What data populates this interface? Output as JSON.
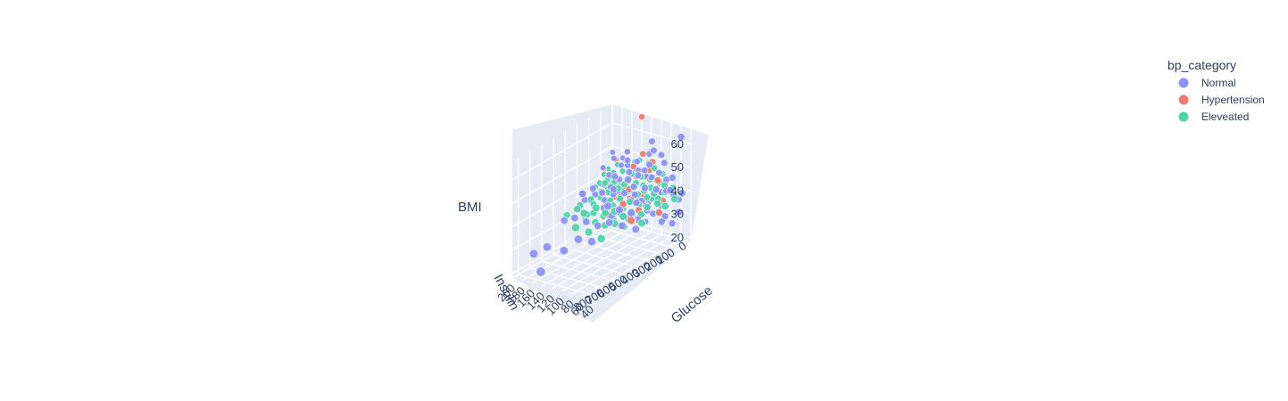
{
  "chart_data": {
    "type": "scatter",
    "title": "",
    "axes": {
      "x": {
        "label": "Glucose",
        "ticks": [
          "40",
          "60",
          "80",
          "100",
          "120",
          "140",
          "160",
          "180",
          "200"
        ],
        "range": [
          40,
          200
        ]
      },
      "y": {
        "label": "Insulin",
        "ticks": [
          "0",
          "100",
          "200",
          "300",
          "400",
          "500",
          "600",
          "700",
          "800"
        ],
        "range": [
          0,
          850
        ]
      },
      "z": {
        "label": "BMI",
        "ticks": [
          "20",
          "30",
          "40",
          "50",
          "60"
        ],
        "range": [
          18,
          68
        ]
      }
    },
    "legend": {
      "title": "bp_category",
      "placement": "top-right",
      "entries": [
        {
          "name": "Normal",
          "color": "#8c93f4"
        },
        {
          "name": "Hypertension",
          "color": "#ef7b6a"
        },
        {
          "name": "Eleveated",
          "color": "#4fd4a8"
        }
      ]
    },
    "series": [
      {
        "name": "Normal",
        "color": "#8c93f4",
        "points": [
          [
            95,
            0,
            25
          ],
          [
            105,
            50,
            28
          ],
          [
            120,
            30,
            31
          ],
          [
            110,
            80,
            30
          ],
          [
            130,
            60,
            33
          ],
          [
            140,
            100,
            34
          ],
          [
            88,
            20,
            27
          ],
          [
            100,
            0,
            36
          ],
          [
            115,
            150,
            35
          ],
          [
            125,
            120,
            37
          ],
          [
            135,
            80,
            36
          ],
          [
            150,
            200,
            38
          ],
          [
            160,
            180,
            40
          ],
          [
            170,
            120,
            39
          ],
          [
            92,
            40,
            32
          ],
          [
            105,
            110,
            33
          ],
          [
            118,
            90,
            34
          ],
          [
            128,
            140,
            35
          ],
          [
            145,
            160,
            36
          ],
          [
            155,
            130,
            37
          ],
          [
            165,
            210,
            35
          ],
          [
            175,
            250,
            38
          ],
          [
            100,
            200,
            30
          ],
          [
            110,
            240,
            31
          ],
          [
            120,
            270,
            34
          ],
          [
            130,
            300,
            33
          ],
          [
            140,
            320,
            36
          ],
          [
            85,
            60,
            26
          ],
          [
            78,
            0,
            24
          ],
          [
            90,
            0,
            42
          ],
          [
            100,
            20,
            45
          ],
          [
            110,
            40,
            43
          ],
          [
            120,
            60,
            46
          ],
          [
            130,
            0,
            41
          ],
          [
            140,
            30,
            44
          ],
          [
            150,
            80,
            47
          ],
          [
            160,
            0,
            42
          ],
          [
            170,
            50,
            45
          ],
          [
            180,
            70,
            48
          ],
          [
            190,
            0,
            43
          ],
          [
            195,
            100,
            44
          ],
          [
            185,
            130,
            38
          ],
          [
            175,
            90,
            36
          ],
          [
            65,
            0,
            35
          ],
          [
            70,
            20,
            37
          ],
          [
            80,
            40,
            39
          ],
          [
            92,
            80,
            40
          ],
          [
            105,
            120,
            41
          ],
          [
            118,
            160,
            42
          ],
          [
            132,
            180,
            39
          ],
          [
            145,
            220,
            41
          ],
          [
            158,
            260,
            40
          ],
          [
            170,
            290,
            42
          ],
          [
            182,
            310,
            37
          ],
          [
            97,
            230,
            27
          ],
          [
            113,
            280,
            29
          ],
          [
            127,
            330,
            31
          ],
          [
            141,
            370,
            30
          ],
          [
            155,
            410,
            32
          ],
          [
            169,
            450,
            34
          ],
          [
            183,
            480,
            33
          ],
          [
            62,
            10,
            30
          ],
          [
            75,
            10,
            44
          ],
          [
            88,
            25,
            50
          ],
          [
            100,
            0,
            52
          ],
          [
            110,
            60,
            49
          ],
          [
            125,
            0,
            51
          ],
          [
            140,
            40,
            48
          ],
          [
            180,
            180,
            36
          ],
          [
            190,
            230,
            34
          ],
          [
            196,
            280,
            38
          ],
          [
            122,
            500,
            28
          ],
          [
            135,
            560,
            30
          ],
          [
            150,
            620,
            26
          ],
          [
            165,
            700,
            29
          ],
          [
            178,
            760,
            27
          ],
          [
            142,
            850,
            24
          ],
          [
            160,
            420,
            44
          ],
          [
            118,
            380,
            40
          ],
          [
            104,
            340,
            38
          ],
          [
            92,
            290,
            36
          ],
          [
            130,
            10,
            22
          ],
          [
            145,
            30,
            23
          ],
          [
            70,
            50,
            40
          ],
          [
            58,
            0,
            38
          ],
          [
            190,
            30,
            40
          ],
          [
            120,
            200,
            46
          ],
          [
            135,
            250,
            48
          ],
          [
            145,
            100,
            50
          ],
          [
            155,
            60,
            52
          ],
          [
            99,
            70,
            56
          ],
          [
            112,
            30,
            58
          ],
          [
            60,
            0,
            62
          ],
          [
            174,
            20,
            47
          ],
          [
            185,
            60,
            50
          ],
          [
            128,
            80,
            44
          ],
          [
            137,
            120,
            46
          ],
          [
            150,
            150,
            43
          ],
          [
            163,
            180,
            45
          ]
        ]
      },
      {
        "name": "Hypertension",
        "color": "#ef7b6a",
        "points": [
          [
            95,
            10,
            33
          ],
          [
            120,
            60,
            36
          ],
          [
            140,
            100,
            34
          ],
          [
            160,
            40,
            38
          ],
          [
            110,
            150,
            32
          ],
          [
            130,
            200,
            35
          ],
          [
            150,
            0,
            40
          ],
          [
            170,
            80,
            39
          ],
          [
            100,
            30,
            42
          ],
          [
            125,
            0,
            44
          ],
          [
            145,
            50,
            46
          ],
          [
            180,
            120,
            41
          ],
          [
            88,
            70,
            30
          ],
          [
            115,
            90,
            37
          ],
          [
            135,
            130,
            39
          ],
          [
            155,
            170,
            36
          ],
          [
            190,
            10,
            45
          ],
          [
            102,
            250,
            31
          ],
          [
            118,
            0,
            48
          ],
          [
            165,
            20,
            50
          ],
          [
            140,
            0,
            66
          ],
          [
            128,
            40,
            52
          ],
          [
            76,
            0,
            36
          ],
          [
            196,
            90,
            43
          ],
          [
            138,
            300,
            33
          ]
        ]
      },
      {
        "name": "Eleveated",
        "color": "#4fd4a8",
        "points": [
          [
            100,
            20,
            32
          ],
          [
            110,
            40,
            34
          ],
          [
            120,
            60,
            35
          ],
          [
            130,
            80,
            36
          ],
          [
            140,
            100,
            37
          ],
          [
            150,
            120,
            38
          ],
          [
            160,
            140,
            39
          ],
          [
            170,
            160,
            38
          ],
          [
            180,
            180,
            37
          ],
          [
            105,
            0,
            36
          ],
          [
            115,
            30,
            38
          ],
          [
            125,
            50,
            39
          ],
          [
            135,
            70,
            40
          ],
          [
            145,
            90,
            41
          ],
          [
            155,
            110,
            40
          ],
          [
            165,
            130,
            42
          ],
          [
            175,
            150,
            41
          ],
          [
            185,
            170,
            40
          ],
          [
            95,
            50,
            35
          ],
          [
            108,
            90,
            36
          ],
          [
            122,
            110,
            37
          ],
          [
            138,
            130,
            38
          ],
          [
            152,
            150,
            39
          ],
          [
            168,
            170,
            37
          ],
          [
            182,
            190,
            36
          ],
          [
            100,
            120,
            33
          ],
          [
            112,
            140,
            34
          ],
          [
            126,
            160,
            35
          ],
          [
            141,
            180,
            36
          ],
          [
            156,
            200,
            35
          ],
          [
            171,
            220,
            36
          ],
          [
            186,
            240,
            35
          ],
          [
            90,
            10,
            37
          ],
          [
            104,
            0,
            40
          ],
          [
            118,
            20,
            41
          ],
          [
            132,
            40,
            42
          ],
          [
            146,
            60,
            43
          ],
          [
            160,
            80,
            44
          ],
          [
            174,
            100,
            43
          ],
          [
            188,
            120,
            42
          ],
          [
            96,
            80,
            38
          ],
          [
            111,
            100,
            39
          ],
          [
            127,
            120,
            40
          ],
          [
            142,
            140,
            41
          ],
          [
            157,
            160,
            42
          ],
          [
            172,
            180,
            41
          ],
          [
            187,
            200,
            39
          ],
          [
            103,
            160,
            31
          ],
          [
            117,
            180,
            32
          ],
          [
            131,
            200,
            33
          ],
          [
            146,
            220,
            34
          ],
          [
            161,
            240,
            33
          ],
          [
            176,
            260,
            34
          ],
          [
            92,
            200,
            29
          ],
          [
            107,
            220,
            30
          ],
          [
            121,
            240,
            31
          ],
          [
            136,
            260,
            30
          ],
          [
            151,
            280,
            31
          ],
          [
            166,
            300,
            32
          ],
          [
            181,
            320,
            31
          ],
          [
            114,
            260,
            28
          ],
          [
            128,
            280,
            29
          ],
          [
            143,
            300,
            28
          ],
          [
            158,
            320,
            29
          ],
          [
            173,
            340,
            30
          ],
          [
            60,
            0,
            38
          ],
          [
            72,
            20,
            40
          ],
          [
            84,
            40,
            41
          ],
          [
            98,
            0,
            44
          ],
          [
            112,
            10,
            46
          ],
          [
            126,
            0,
            47
          ],
          [
            140,
            20,
            48
          ],
          [
            154,
            0,
            46
          ],
          [
            168,
            10,
            45
          ],
          [
            182,
            30,
            44
          ],
          [
            196,
            50,
            42
          ],
          [
            122,
            420,
            27
          ],
          [
            138,
            460,
            30
          ],
          [
            150,
            520,
            33
          ],
          [
            162,
            400,
            35
          ],
          [
            175,
            380,
            37
          ],
          [
            106,
            300,
            34
          ],
          [
            119,
            320,
            36
          ],
          [
            133,
            340,
            35
          ],
          [
            147,
            360,
            37
          ],
          [
            161,
            380,
            34
          ],
          [
            176,
            400,
            36
          ],
          [
            192,
            420,
            33
          ],
          [
            94,
            280,
            36
          ],
          [
            84,
            100,
            35
          ],
          [
            78,
            60,
            33
          ],
          [
            66,
            30,
            36
          ]
        ]
      }
    ]
  }
}
